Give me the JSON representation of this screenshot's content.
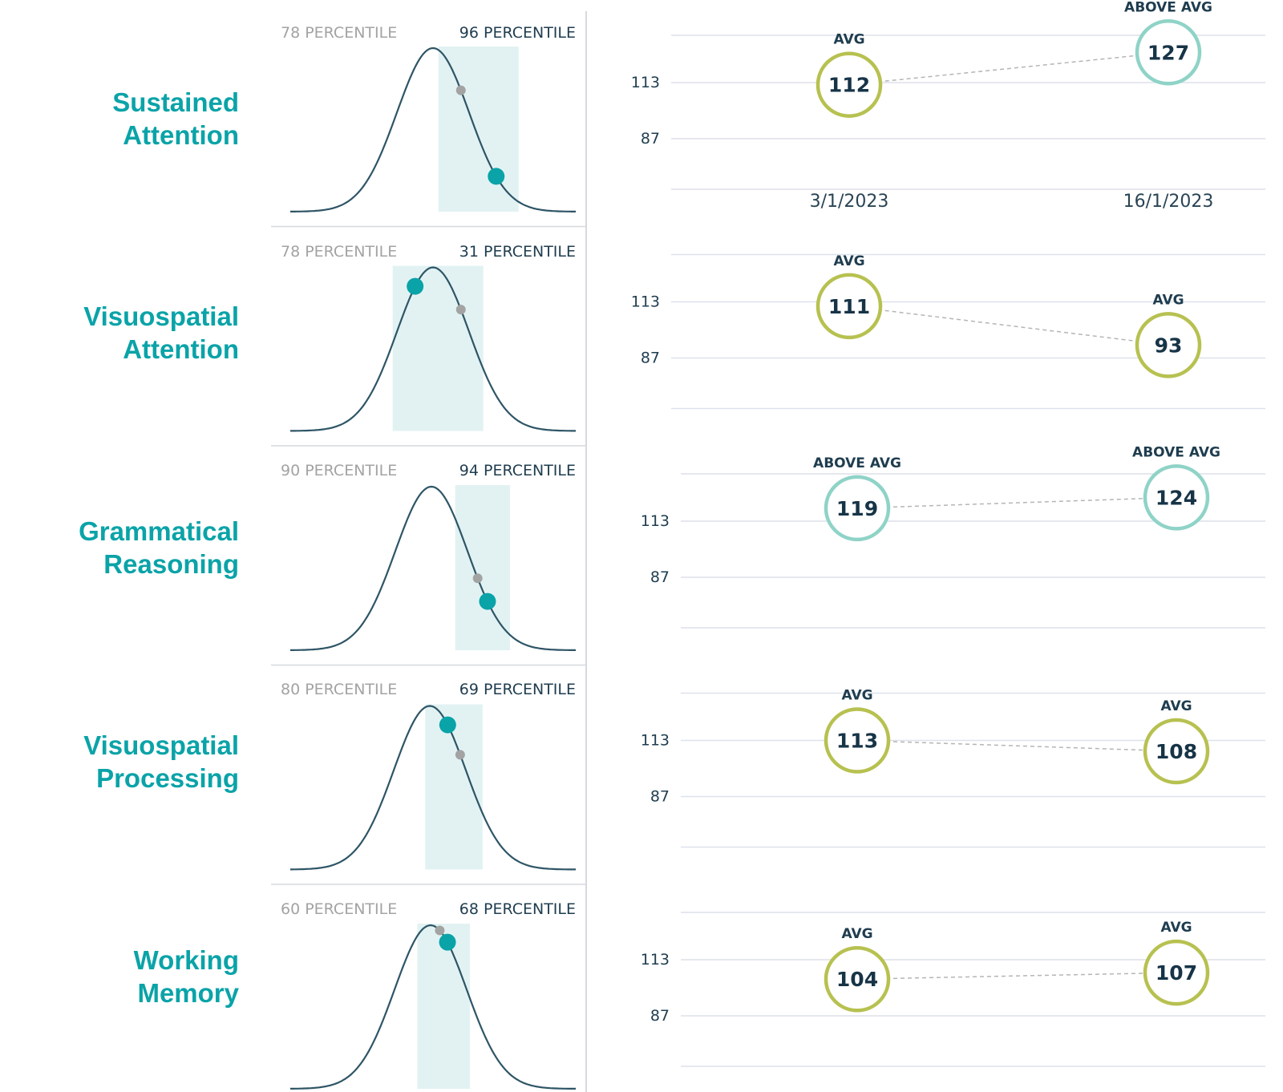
{
  "colors": {
    "accent": "#0aa3a8",
    "avg_ring": "#b7c150",
    "above_avg_ring": "#8fd3c7",
    "curve": "#2e5566",
    "shade": "#e2f2f3",
    "grid": "#dde1ea",
    "prev_marker": "#a3a3a3"
  },
  "chart_data": [
    {
      "type": "line",
      "domain": "Sustained Attention",
      "distribution": {
        "previous_percentile_label": "78 PERCENTILE",
        "current_percentile_label": "96 PERCENTILE",
        "previous_percentile": 78,
        "current_percentile": 96
      },
      "y_ticks": [
        "113",
        "87"
      ],
      "x_ticks": [
        "3/1/2023",
        "16/1/2023"
      ],
      "points": [
        {
          "date": "3/1/2023",
          "score": 112,
          "category": "AVG"
        },
        {
          "date": "16/1/2023",
          "score": 127,
          "category": "ABOVE AVG"
        }
      ]
    },
    {
      "type": "line",
      "domain": "Visuospatial Attention",
      "distribution": {
        "previous_percentile_label": "78 PERCENTILE",
        "current_percentile_label": "31 PERCENTILE",
        "previous_percentile": 78,
        "current_percentile": 31
      },
      "y_ticks": [
        "113",
        "87"
      ],
      "x_ticks": [],
      "points": [
        {
          "date": "3/1/2023",
          "score": 111,
          "category": "AVG"
        },
        {
          "date": "16/1/2023",
          "score": 93,
          "category": "AVG"
        }
      ]
    },
    {
      "type": "line",
      "domain": "Grammatical Reasoning",
      "distribution": {
        "previous_percentile_label": "90 PERCENTILE",
        "current_percentile_label": "94 PERCENTILE",
        "previous_percentile": 90,
        "current_percentile": 94
      },
      "y_ticks": [
        "113",
        "87"
      ],
      "x_ticks": [],
      "points": [
        {
          "date": "3/1/2023",
          "score": 119,
          "category": "ABOVE AVG"
        },
        {
          "date": "16/1/2023",
          "score": 124,
          "category": "ABOVE AVG"
        }
      ]
    },
    {
      "type": "line",
      "domain": "Visuospatial Processing",
      "distribution": {
        "previous_percentile_label": "80 PERCENTILE",
        "current_percentile_label": "69 PERCENTILE",
        "previous_percentile": 80,
        "current_percentile": 69
      },
      "y_ticks": [
        "113",
        "87"
      ],
      "x_ticks": [],
      "points": [
        {
          "date": "3/1/2023",
          "score": 113,
          "category": "AVG"
        },
        {
          "date": "16/1/2023",
          "score": 108,
          "category": "AVG"
        }
      ]
    },
    {
      "type": "line",
      "domain": "Working Memory",
      "distribution": {
        "previous_percentile_label": "60 PERCENTILE",
        "current_percentile_label": "68 PERCENTILE",
        "previous_percentile": 60,
        "current_percentile": 68
      },
      "y_ticks": [
        "113",
        "87"
      ],
      "x_ticks": [],
      "points": [
        {
          "date": "3/1/2023",
          "score": 104,
          "category": "AVG"
        },
        {
          "date": "16/1/2023",
          "score": 107,
          "category": "AVG"
        }
      ]
    }
  ],
  "labels": [
    {
      "line1": "Sustained",
      "line2": "Attention"
    },
    {
      "line1": "Visuospatial",
      "line2": "Attention"
    },
    {
      "line1": "Grammatical",
      "line2": "Reasoning"
    },
    {
      "line1": "Visuospatial",
      "line2": "Processing"
    },
    {
      "line1": "Working",
      "line2": "Memory"
    }
  ]
}
